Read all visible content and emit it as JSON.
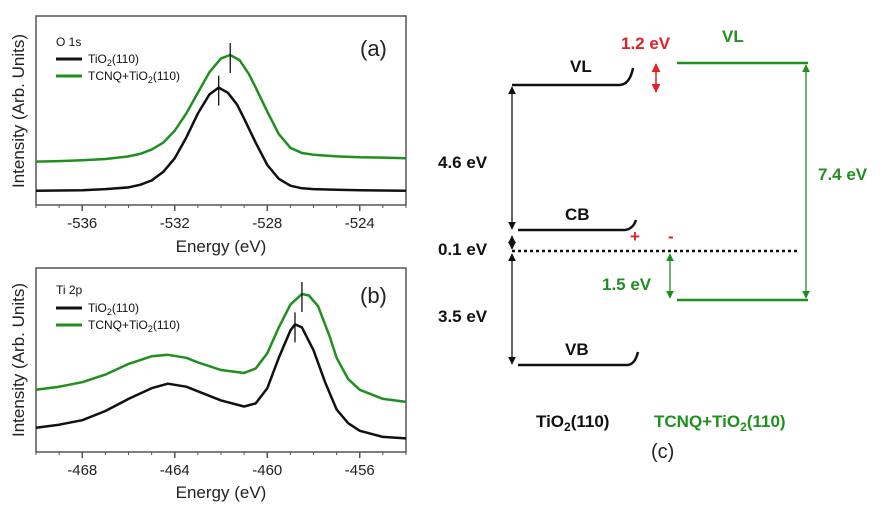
{
  "colors": {
    "tio2": "#111111",
    "tcnq": "#1f8f1f",
    "red": "#e0202a",
    "frame": "#555555"
  },
  "chart_data": [
    {
      "type": "line",
      "panel_label": "(a)",
      "core_level": "O 1s",
      "xlabel": "Energy (eV)",
      "ylabel": "Intensity (Arb. Units)",
      "xlim": [
        -538,
        -522
      ],
      "ylim": [
        0,
        100
      ],
      "xticks": [
        -536,
        -532,
        -528,
        -524
      ],
      "xtick_labels": [
        "-536",
        "-532",
        "-528",
        "-524"
      ],
      "legend": [
        {
          "base": "TiO",
          "sub": "2",
          "rest": "(110)",
          "color": "#111111"
        },
        {
          "base": "TCNQ+TiO",
          "sub": "2",
          "rest": "(110)",
          "color": "#1f8f1f"
        }
      ],
      "peak_markers": [
        {
          "series": "TiO2(110)",
          "x": -530.1
        },
        {
          "series": "TCNQ+TiO2(110)",
          "x": -529.6
        }
      ],
      "series": [
        {
          "name": "TiO2(110)",
          "color": "#111111",
          "x": [
            -538,
            -537,
            -536,
            -535,
            -534,
            -533.5,
            -533,
            -532.5,
            -532,
            -531.5,
            -531,
            -530.5,
            -530.1,
            -529.7,
            -529.3,
            -529,
            -528.5,
            -528,
            -527.5,
            -527,
            -526.5,
            -526,
            -525,
            -524,
            -523,
            -522
          ],
          "y": [
            3,
            3.2,
            3.4,
            4,
            5,
            6.5,
            9,
            14,
            22,
            34,
            48,
            59,
            63,
            60,
            53,
            45,
            31,
            18,
            10,
            6,
            4.5,
            4,
            3.6,
            3.4,
            3.2,
            3
          ]
        },
        {
          "name": "TCNQ+TiO2(110)",
          "color": "#1f8f1f",
          "x": [
            -538,
            -537,
            -536,
            -535,
            -534,
            -533.5,
            -533,
            -532.5,
            -532,
            -531.5,
            -531,
            -530.5,
            -530,
            -529.6,
            -529.2,
            -528.8,
            -528.5,
            -528,
            -527.5,
            -527,
            -526.5,
            -526,
            -525,
            -524,
            -523,
            -522
          ],
          "y": [
            20,
            20.3,
            20.8,
            21.5,
            23,
            24.5,
            27,
            31,
            38,
            48,
            60,
            72,
            80,
            82,
            79,
            71,
            63,
            49,
            36,
            28,
            25,
            24,
            23,
            22.5,
            22.3,
            22
          ]
        }
      ]
    },
    {
      "type": "line",
      "panel_label": "(b)",
      "core_level": "Ti 2p",
      "xlabel": "Energy (eV)",
      "ylabel": "Intensity (Arb. Units)",
      "xlim": [
        -470,
        -454
      ],
      "ylim": [
        0,
        100
      ],
      "xticks": [
        -468,
        -464,
        -460,
        -456
      ],
      "xtick_labels": [
        "-468",
        "-464",
        "-460",
        "-456"
      ],
      "legend": [
        {
          "base": "TiO",
          "sub": "2",
          "rest": "(110)",
          "color": "#111111"
        },
        {
          "base": "TCNQ+TiO",
          "sub": "2",
          "rest": "(110)",
          "color": "#1f8f1f"
        }
      ],
      "peak_markers": [
        {
          "series": "TiO2(110)",
          "x": -458.8
        },
        {
          "series": "TCNQ+TiO2(110)",
          "x": -458.5
        }
      ],
      "series": [
        {
          "name": "TiO2(110)",
          "color": "#111111",
          "x": [
            -470,
            -469,
            -468,
            -467,
            -466,
            -465,
            -464.3,
            -463.5,
            -463,
            -462,
            -461,
            -460.5,
            -460,
            -459.5,
            -459,
            -458.8,
            -458.5,
            -458,
            -457.5,
            -457,
            -456.5,
            -456,
            -455,
            -454
          ],
          "y": [
            12,
            14,
            17,
            23,
            31,
            38,
            41,
            39,
            36,
            30,
            26,
            28,
            38,
            58,
            76,
            80,
            78,
            63,
            42,
            24,
            15,
            10,
            6,
            5
          ]
        },
        {
          "name": "TCNQ+TiO2(110)",
          "color": "#1f8f1f",
          "x": [
            -470,
            -469,
            -468,
            -467,
            -466,
            -465,
            -464.3,
            -463.5,
            -463,
            -462,
            -461,
            -460.5,
            -460,
            -459.5,
            -459,
            -458.5,
            -458.2,
            -457.8,
            -457.3,
            -457,
            -456.5,
            -456,
            -455,
            -454
          ],
          "y": [
            37,
            39,
            42,
            47,
            54,
            59,
            60,
            58,
            55,
            50,
            48,
            51,
            61,
            78,
            93,
            100,
            99,
            92,
            72,
            58,
            44,
            37,
            31,
            29
          ]
        }
      ]
    }
  ],
  "panel_c": {
    "label": "(c)",
    "tio2": {
      "name_base": "TiO",
      "name_sub": "2",
      "name_rest": "(110)",
      "levels": [
        "VL",
        "CB",
        "VB"
      ]
    },
    "tcnq": {
      "name_base": "TCNQ+TiO",
      "name_sub": "2",
      "name_rest": "(110)",
      "levels": [
        "VL"
      ]
    },
    "gaps": {
      "vl_cb": "4.6 eV",
      "cb_fermi": "0.1 eV",
      "fermi_vb": "3.5 eV",
      "vl_shift": "1.2 eV",
      "tcnq_ip": "7.4 eV",
      "tcnq_fermi": "1.5 eV"
    },
    "charges": {
      "positive": "+",
      "negative": "-"
    }
  }
}
